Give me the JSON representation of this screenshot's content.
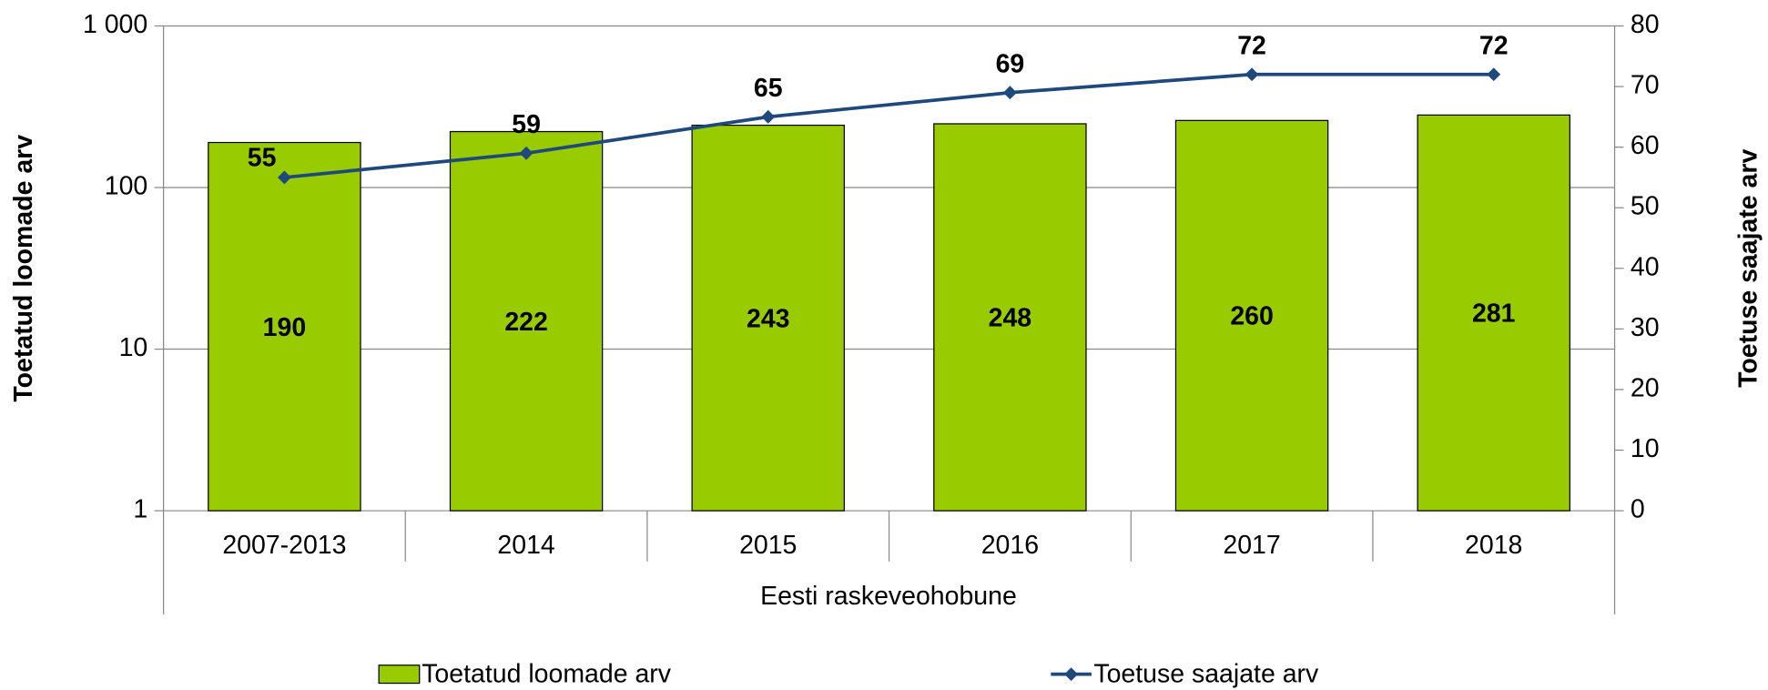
{
  "chart_data": {
    "type": "bar",
    "categories": [
      "2007-2013",
      "2014",
      "2015",
      "2016",
      "2017",
      "2018"
    ],
    "group_label": "Eesti raskeveohobune",
    "ylabel": "Toetatud loomade arv",
    "y2label": "Toetuse saajate arv",
    "ylim": [
      1,
      1000
    ],
    "yscale": "log",
    "yticks": [
      1,
      10,
      100,
      {
        "value": 1000,
        "label": "1 000"
      }
    ],
    "y2lim": [
      0,
      80
    ],
    "y2ticks": [
      0,
      10,
      20,
      30,
      40,
      50,
      60,
      70,
      80
    ],
    "grid": true,
    "legend": "bottom",
    "series": [
      {
        "name": "Toetatud loomade arv",
        "type": "bar",
        "color": "#99cc00",
        "values": [
          190,
          222,
          243,
          248,
          260,
          281
        ]
      },
      {
        "name": "Toetuse saajate arv",
        "type": "line",
        "axis": "y2",
        "color": "#1f497d",
        "values": [
          55,
          59,
          65,
          69,
          72,
          72
        ]
      }
    ]
  }
}
